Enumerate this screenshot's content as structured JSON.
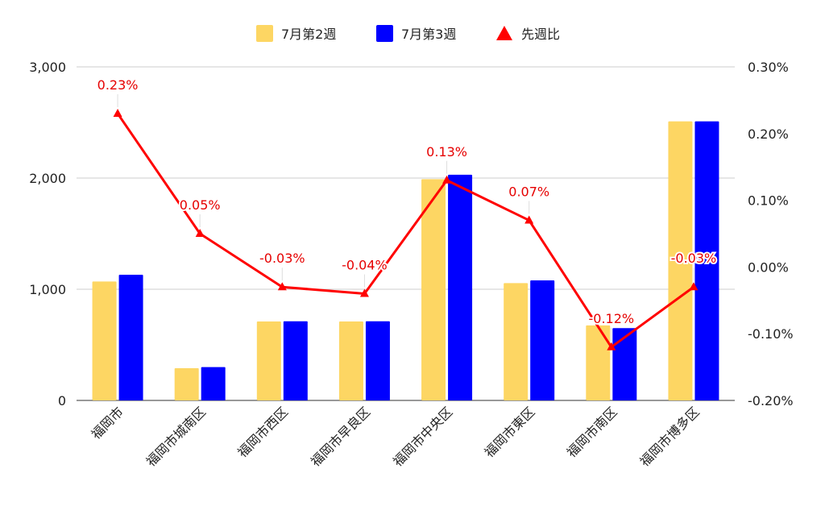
{
  "chart_data": {
    "type": "bar",
    "categories": [
      "福岡市",
      "福岡市城南区",
      "福岡市西区",
      "福岡市早良区",
      "福岡市中央区",
      "福岡市東区",
      "福岡市南区",
      "福岡市博多区"
    ],
    "series": [
      {
        "name": "7月第2週",
        "type": "bar",
        "axis": "left",
        "color": "#fdd663",
        "values": [
          1070,
          290,
          710,
          710,
          1990,
          1055,
          675,
          2510
        ]
      },
      {
        "name": "7月第3週",
        "type": "bar",
        "axis": "left",
        "color": "#0000ff",
        "values": [
          1130,
          300,
          712,
          712,
          2030,
          1080,
          650,
          2510
        ]
      },
      {
        "name": "先週比",
        "type": "line",
        "axis": "right",
        "color": "#ff0000",
        "marker": "triangle",
        "values": [
          0.23,
          0.05,
          -0.03,
          -0.04,
          0.13,
          0.07,
          -0.12,
          -0.03
        ],
        "labels": [
          "0.23%",
          "0.05%",
          "-0.03%",
          "-0.04%",
          "0.13%",
          "0.07%",
          "-0.12%",
          "-0.03%"
        ]
      }
    ],
    "y_left": {
      "ylim": [
        0,
        3000
      ],
      "ticks": [
        0,
        1000,
        2000,
        3000
      ],
      "tick_labels": [
        "0",
        "1,000",
        "2,000",
        "3,000"
      ]
    },
    "y_right": {
      "ylim": [
        -0.2,
        0.3
      ],
      "ticks": [
        -0.2,
        -0.1,
        0,
        0.1,
        0.2,
        0.3
      ],
      "tick_labels": [
        "-0.20%",
        "-0.10%",
        "0.00%",
        "0.10%",
        "0.20%",
        "0.30%"
      ]
    },
    "grid": true,
    "legend_position": "top"
  }
}
